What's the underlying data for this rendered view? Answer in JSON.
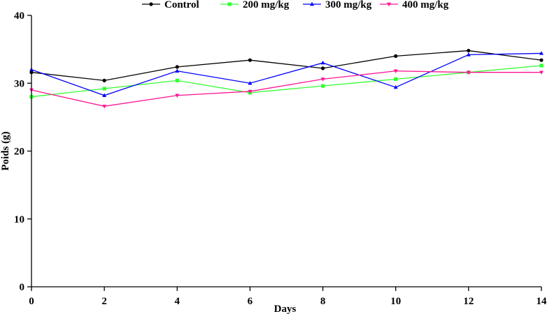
{
  "chart_data": {
    "type": "line",
    "title": "",
    "xlabel": "Days",
    "ylabel": "Poids (g)",
    "xlim": [
      0,
      14
    ],
    "ylim": [
      0,
      40
    ],
    "x_ticks": [
      0,
      2,
      4,
      6,
      8,
      10,
      12,
      14
    ],
    "y_ticks": [
      0,
      10,
      20,
      30,
      40
    ],
    "grid": false,
    "legend_position": "top-center",
    "x": [
      0,
      2,
      4,
      6,
      8,
      10,
      12,
      14
    ],
    "series": [
      {
        "name": "Control",
        "color": "#000000",
        "marker": "circle",
        "values": [
          31.6,
          30.4,
          32.4,
          33.4,
          32.2,
          34.0,
          34.8,
          33.4
        ]
      },
      {
        "name": "200 mg/kg",
        "color": "#33ff33",
        "marker": "square",
        "values": [
          28.0,
          29.2,
          30.4,
          28.6,
          29.6,
          30.6,
          31.6,
          32.6
        ]
      },
      {
        "name": "300 mg/kg",
        "color": "#0000ff",
        "marker": "triangle-up",
        "values": [
          32.0,
          28.2,
          31.8,
          30.0,
          33.0,
          29.4,
          34.2,
          34.4
        ]
      },
      {
        "name": "400 mg/kg",
        "color": "#ff1493",
        "marker": "triangle-down",
        "values": [
          29.0,
          26.6,
          28.2,
          28.8,
          30.6,
          31.8,
          31.6,
          31.6
        ]
      }
    ]
  }
}
